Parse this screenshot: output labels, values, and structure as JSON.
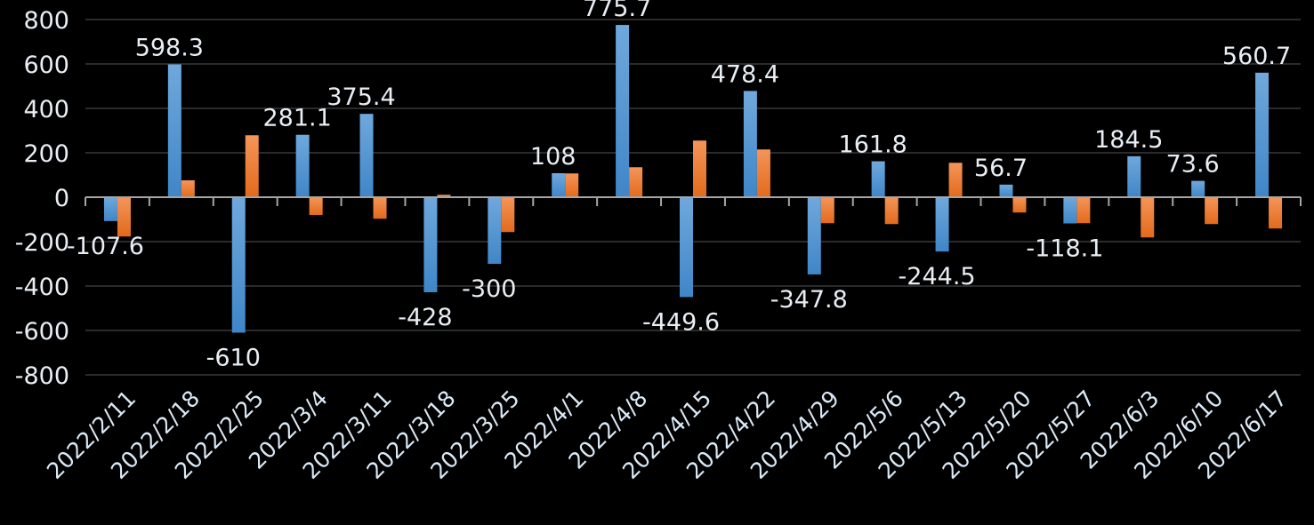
{
  "chart_data": {
    "type": "bar",
    "title": "",
    "xlabel": "",
    "ylabel": "",
    "ylim": [
      -800,
      800
    ],
    "yticks": [
      800,
      600,
      400,
      200,
      0,
      -200,
      -400,
      -600,
      -800
    ],
    "grid": true,
    "legend": "none",
    "categories": [
      "2022/2/11",
      "2022/2/18",
      "2022/2/25",
      "2022/3/4",
      "2022/3/11",
      "2022/3/18",
      "2022/3/25",
      "2022/4/1",
      "2022/4/8",
      "2022/4/15",
      "2022/4/22",
      "2022/4/29",
      "2022/5/6",
      "2022/5/13",
      "2022/5/20",
      "2022/5/27",
      "2022/6/3",
      "2022/6/10",
      "2022/6/17"
    ],
    "series": [
      {
        "color": "#5b9bd5",
        "data_labels": true,
        "values": [
          -107.6,
          598.3,
          -610,
          281.1,
          375.4,
          -428,
          -300,
          108,
          775.7,
          -449.6,
          478.4,
          -347.8,
          161.8,
          -244.5,
          56.7,
          -118.1,
          184.5,
          73.6,
          560.7
        ]
      },
      {
        "color": "#ed7d31",
        "data_labels": false,
        "values": [
          -177,
          76,
          279,
          -80,
          -97,
          11,
          -157,
          107,
          135,
          255,
          215,
          -117,
          -121,
          155,
          -69,
          -117,
          -181,
          -121,
          -141
        ]
      }
    ]
  }
}
